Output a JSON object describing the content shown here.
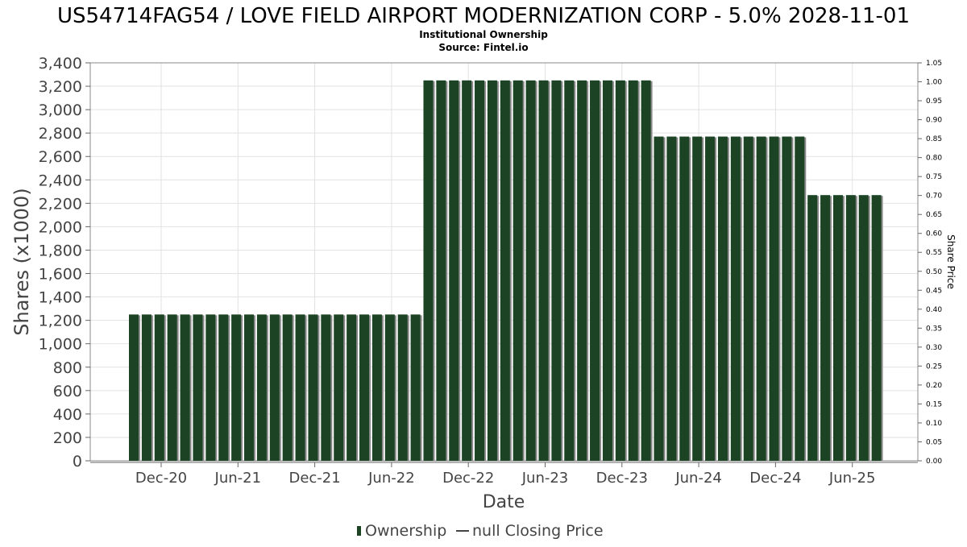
{
  "chart_data": {
    "type": "bar",
    "title": "US54714FAG54 / LOVE FIELD AIRPORT MODERNIZATION CORP - 5.0% 2028-11-01",
    "subtitle_lines": [
      "Institutional Ownership",
      "Source: Fintel.io"
    ],
    "xlabel": "Date",
    "ylabel": "Shares (x1000)",
    "y2label": "Share Price",
    "ylim": [
      0,
      3400
    ],
    "y_ticks": [
      0,
      200,
      400,
      600,
      800,
      1000,
      1200,
      1400,
      1600,
      1800,
      2000,
      2200,
      2400,
      2600,
      2800,
      3000,
      3200,
      3400
    ],
    "y_tick_labels": [
      "0",
      "200",
      "400",
      "600",
      "800",
      "1,000",
      "1,200",
      "1,400",
      "1,600",
      "1,800",
      "2,000",
      "2,200",
      "2,400",
      "2,600",
      "2,800",
      "3,000",
      "3,200",
      "3,400"
    ],
    "y2lim": [
      0,
      1.05
    ],
    "y2_ticks": [
      0,
      0.05,
      0.1,
      0.15,
      0.2,
      0.25,
      0.3,
      0.35,
      0.4,
      0.45,
      0.5,
      0.55,
      0.6,
      0.65,
      0.7,
      0.75,
      0.8,
      0.85,
      0.9,
      0.95,
      1.0,
      1.05
    ],
    "y2_tick_labels": [
      "0.00",
      "0.05",
      "0.10",
      "0.15",
      "0.20",
      "0.25",
      "0.30",
      "0.35",
      "0.40",
      "0.45",
      "0.50",
      "0.55",
      "0.60",
      "0.65",
      "0.70",
      "0.75",
      "0.80",
      "0.85",
      "0.90",
      "0.95",
      "1.00",
      "1.05"
    ],
    "x_tick_labels": [
      "Dec-20",
      "Jun-21",
      "Dec-21",
      "Jun-22",
      "Dec-22",
      "Jun-23",
      "Dec-23",
      "Jun-24",
      "Dec-24",
      "Jun-25"
    ],
    "grid": true,
    "legend_position": "bottom",
    "legend": [
      {
        "label": "Ownership",
        "kind": "bar"
      },
      {
        "label": "null Closing Price",
        "kind": "line"
      }
    ],
    "series": [
      {
        "name": "Ownership",
        "color": "#1c4424",
        "values": [
          1250,
          1250,
          1250,
          1250,
          1250,
          1250,
          1250,
          1250,
          1250,
          1250,
          1250,
          1250,
          1250,
          1250,
          1250,
          1250,
          1250,
          1250,
          1250,
          1250,
          1250,
          1250,
          1250,
          3250,
          3250,
          3250,
          3250,
          3250,
          3250,
          3250,
          3250,
          3250,
          3250,
          3250,
          3250,
          3250,
          3250,
          3250,
          3250,
          3250,
          3250,
          2770,
          2770,
          2770,
          2770,
          2770,
          2770,
          2770,
          2770,
          2770,
          2770,
          2770,
          2770,
          2270,
          2270,
          2270,
          2270,
          2270,
          2270
        ]
      }
    ]
  }
}
